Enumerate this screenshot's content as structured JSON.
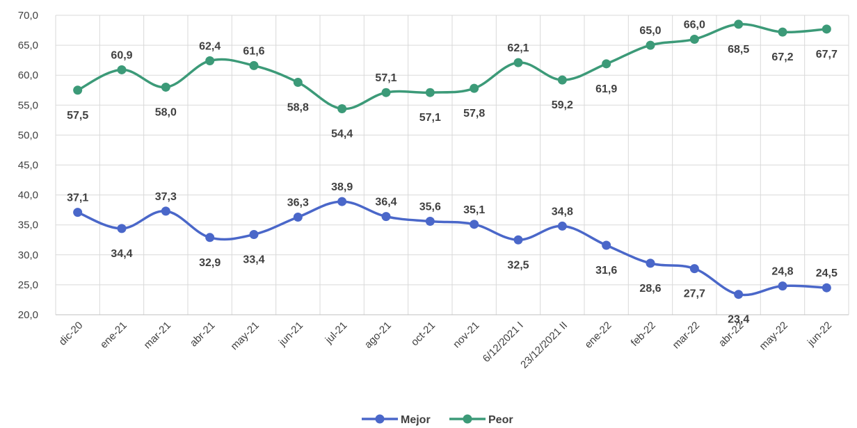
{
  "chart_data": {
    "type": "line",
    "categories": [
      "dic-20",
      "ene-21",
      "mar-21",
      "abr-21",
      "may-21",
      "jun-21",
      "jul-21",
      "ago-21",
      "oct-21",
      "nov-21",
      "6/12/2021 I",
      "23/12/2021 II",
      "ene-22",
      "feb-22",
      "mar-22",
      "abr-22",
      "may-22",
      "jun-22"
    ],
    "series": [
      {
        "name": "Mejor",
        "color": "#4a67c9",
        "values": [
          37.1,
          34.4,
          37.3,
          32.9,
          33.4,
          36.3,
          38.9,
          36.4,
          35.6,
          35.1,
          32.5,
          34.8,
          31.6,
          28.6,
          27.7,
          23.4,
          24.8,
          24.5
        ],
        "labels": [
          "37,1",
          "34,4",
          "37,3",
          "32,9",
          "33,4",
          "36,3",
          "38,9",
          "36,4",
          "35,6",
          "35,1",
          "32,5",
          "34,8",
          "31,6",
          "28,6",
          "27,7",
          "23,4",
          "24,8",
          "24,5"
        ]
      },
      {
        "name": "Peor",
        "color": "#3c9a78",
        "values": [
          57.5,
          60.9,
          58.0,
          62.4,
          61.6,
          58.8,
          54.4,
          57.1,
          57.1,
          57.8,
          62.1,
          59.2,
          61.9,
          65.0,
          66.0,
          68.5,
          67.2,
          67.7
        ],
        "labels": [
          "57,5",
          "60,9",
          "58,0",
          "62,4",
          "61,6",
          "58,8",
          "54,4",
          "57,1",
          "57,1",
          "57,8",
          "62,1",
          "59,2",
          "61,9",
          "65,0",
          "66,0",
          "68,5",
          "67,2",
          "67,7"
        ]
      }
    ],
    "yticks": [
      "20,0",
      "25,0",
      "30,0",
      "35,0",
      "40,0",
      "45,0",
      "50,0",
      "55,0",
      "60,0",
      "65,0",
      "70,0"
    ],
    "ylim": [
      20,
      70
    ],
    "grid": true,
    "legend_position": "bottom-center",
    "title": "",
    "xlabel": "",
    "ylabel": ""
  }
}
